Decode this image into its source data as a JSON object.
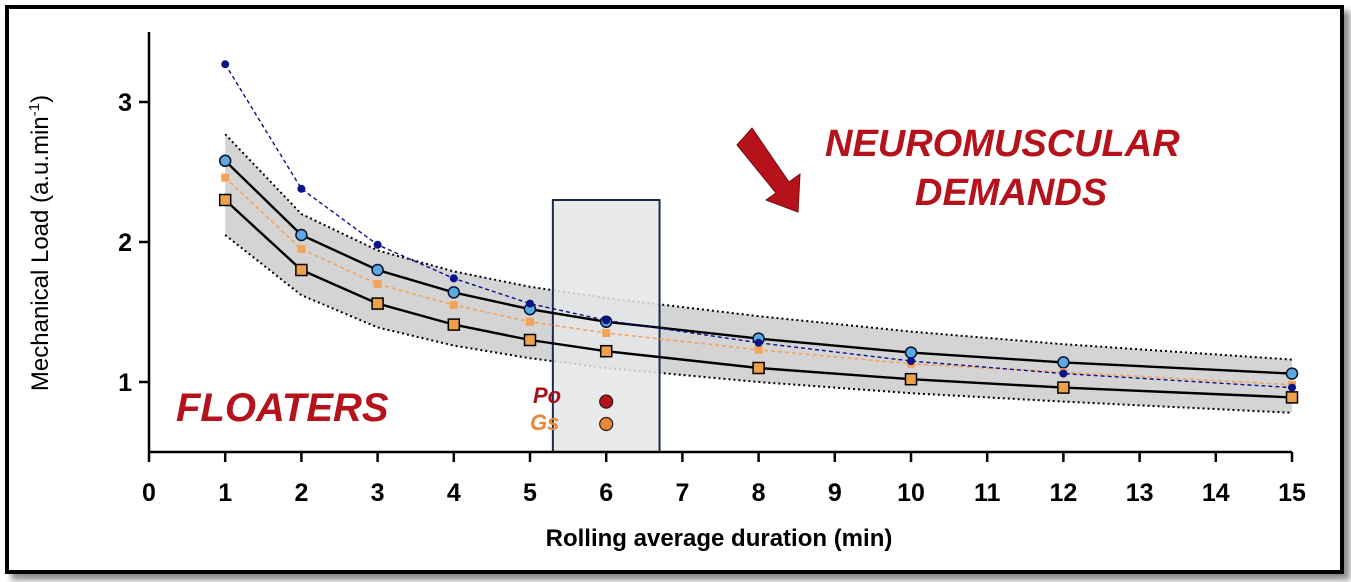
{
  "annotations": {
    "demands_line1": "NEUROMUSCULAR",
    "demands_line2": "DEMANDS",
    "floaters": "FLOATERS",
    "po_label": "Po",
    "gs_label": "Gs"
  },
  "colors": {
    "upper_line": "#000000",
    "upper_marker": "#5ca8e0",
    "lower_marker": "#f0a04b",
    "blue_dashed": "#0b128a",
    "orange_dashed": "#f4a45a",
    "band_fill": "#d4d4d4",
    "highlight_box": "#e4e6e8",
    "highlight_stroke": "#1c2a4a",
    "po_dot": "#b5121b",
    "gs_dot": "#e9873a",
    "annotation_red": "#b5121b",
    "arrow": "#b5121b"
  },
  "chart_data": {
    "type": "line",
    "title": "",
    "xlabel": "Rolling average duration (min)",
    "ylabel": "Mechanical Load (a.u.min",
    "ylabel_sup": "-1",
    "ylabel_close": ")",
    "xlim": [
      0,
      15
    ],
    "ylim": [
      0.5,
      3.5
    ],
    "x_ticks": [
      "0",
      "1",
      "2",
      "3",
      "4",
      "5",
      "6",
      "7",
      "8",
      "9",
      "10",
      "11",
      "12",
      "13",
      "14",
      "15"
    ],
    "y_ticks": [
      "1",
      "2",
      "3"
    ],
    "x": [
      "1",
      "2",
      "3",
      "4",
      "5",
      "6",
      "8",
      "10",
      "12",
      "15"
    ],
    "series": [
      {
        "key": "upper_solid",
        "style": "solid-circle",
        "values": [
          2.58,
          2.05,
          1.8,
          1.64,
          1.52,
          1.43,
          1.31,
          1.21,
          1.14,
          1.06
        ]
      },
      {
        "key": "lower_solid",
        "style": "solid-square",
        "values": [
          2.3,
          1.8,
          1.56,
          1.41,
          1.3,
          1.22,
          1.1,
          1.02,
          0.96,
          0.89
        ]
      },
      {
        "key": "orange_dashed",
        "style": "dashed-square",
        "values": [
          2.46,
          1.95,
          1.7,
          1.55,
          1.43,
          1.35,
          1.23,
          1.13,
          1.07,
          0.98
        ]
      },
      {
        "key": "blue_dashed",
        "style": "dashed-dot",
        "values": [
          3.27,
          2.38,
          1.98,
          1.74,
          1.56,
          1.44,
          1.28,
          1.15,
          1.06,
          0.96
        ]
      }
    ],
    "band": {
      "upper": [
        2.77,
        2.2,
        1.94,
        1.79,
        1.68,
        1.6,
        1.47,
        1.36,
        1.27,
        1.16
      ],
      "lower": [
        2.05,
        1.62,
        1.39,
        1.26,
        1.17,
        1.1,
        1.0,
        0.92,
        0.86,
        0.78
      ]
    },
    "highlight_x": [
      5.3,
      6.7
    ],
    "highlight_y": [
      0.5,
      2.3
    ],
    "points": [
      {
        "key": "po",
        "x": 6,
        "y": 0.86
      },
      {
        "key": "gs",
        "x": 6,
        "y": 0.7
      }
    ]
  }
}
